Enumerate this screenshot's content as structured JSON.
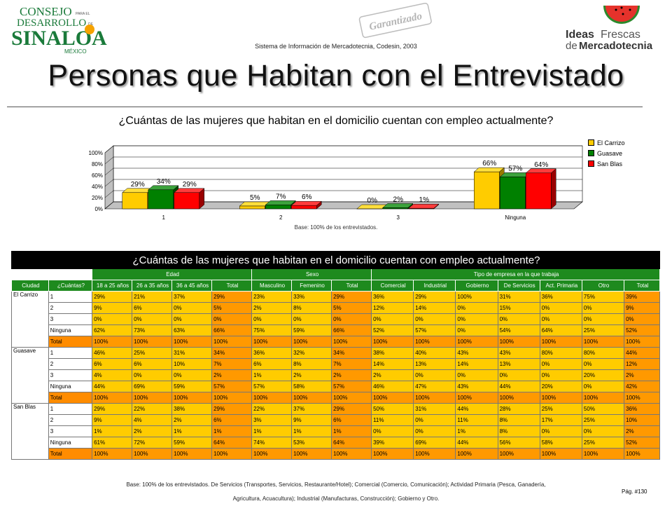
{
  "header": {
    "logo_left": {
      "line1": "CONSEJO",
      "line1b": "PARA EL",
      "line2": "DESARROLLO",
      "line2b": "DE",
      "line3": "SINALOA",
      "line4": "MÉXICO"
    },
    "subtitle": "Sistema de Información de Mercadotecnia, Codesin, 2003",
    "stamp_text": "Garantizado",
    "logo_right": {
      "line1a": "Ideas",
      "line1b": "Frescas",
      "line2a": "de",
      "line2b": "Mercadotecnia"
    }
  },
  "title": "Personas que Habitan con el Entrevistado",
  "chart_data": {
    "type": "bar",
    "title": "¿Cuántas de las mujeres que habitan en el domicilio cuentan con empleo actualmente?",
    "categories": [
      "1",
      "2",
      "3",
      "Ninguna"
    ],
    "series": [
      {
        "name": "El Carrizo",
        "values": [
          29,
          5,
          0,
          66
        ],
        "labels": [
          "29%",
          "5%",
          "0%",
          "66%"
        ],
        "color": "#ffcc00"
      },
      {
        "name": "Guasave",
        "values": [
          34,
          7,
          2,
          57
        ],
        "labels": [
          "34%",
          "7%",
          "2%",
          "57%"
        ],
        "color": "#008000"
      },
      {
        "name": "San Blas",
        "values": [
          29,
          6,
          1,
          64
        ],
        "labels": [
          "29%",
          "6%",
          "1%",
          "64%"
        ],
        "color": "#ff0000"
      }
    ],
    "ylim": [
      0,
      100
    ],
    "yticks": [
      "0%",
      "20%",
      "40%",
      "60%",
      "80%",
      "100%"
    ],
    "legend_position": "right",
    "note": "Base: 100% de los entrevistados."
  },
  "table": {
    "title": "¿Cuántas de las mujeres que habitan en el domicilio cuentan con empleo actualmente?",
    "groups": [
      "Edad",
      "Sexo",
      "Tipo de empresa en la que trabaja"
    ],
    "columns": [
      "Ciudad",
      "¿Cuántas?",
      "18 a 25 años",
      "26 a 35 años",
      "36 a 45 años",
      "Total",
      "Masculino",
      "Femenino",
      "Total",
      "Comercial",
      "Industrial",
      "Gobierno",
      "De Servicios",
      "Act. Primaria",
      "Otro",
      "Total"
    ],
    "cities": [
      {
        "name": "El Carrizo",
        "rows": [
          {
            "label": "1",
            "values": [
              "29%",
              "21%",
              "37%",
              "29%",
              "23%",
              "33%",
              "29%",
              "36%",
              "29%",
              "100%",
              "31%",
              "36%",
              "75%",
              "39%"
            ]
          },
          {
            "label": "2",
            "values": [
              "9%",
              "6%",
              "0%",
              "5%",
              "2%",
              "8%",
              "5%",
              "12%",
              "14%",
              "0%",
              "15%",
              "0%",
              "0%",
              "9%"
            ]
          },
          {
            "label": "3",
            "values": [
              "0%",
              "0%",
              "0%",
              "0%",
              "0%",
              "0%",
              "0%",
              "0%",
              "0%",
              "0%",
              "0%",
              "0%",
              "0%",
              "0%"
            ]
          },
          {
            "label": "Ninguna",
            "values": [
              "62%",
              "73%",
              "63%",
              "66%",
              "75%",
              "59%",
              "66%",
              "52%",
              "57%",
              "0%",
              "54%",
              "64%",
              "25%",
              "52%"
            ]
          },
          {
            "label": "Total",
            "values": [
              "100%",
              "100%",
              "100%",
              "100%",
              "100%",
              "100%",
              "100%",
              "100%",
              "100%",
              "100%",
              "100%",
              "100%",
              "100%",
              "100%"
            ]
          }
        ]
      },
      {
        "name": "Guasave",
        "rows": [
          {
            "label": "1",
            "values": [
              "46%",
              "25%",
              "31%",
              "34%",
              "36%",
              "32%",
              "34%",
              "38%",
              "40%",
              "43%",
              "43%",
              "80%",
              "80%",
              "44%"
            ]
          },
          {
            "label": "2",
            "values": [
              "6%",
              "6%",
              "10%",
              "7%",
              "6%",
              "8%",
              "7%",
              "14%",
              "13%",
              "14%",
              "13%",
              "0%",
              "0%",
              "12%"
            ]
          },
          {
            "label": "3",
            "values": [
              "4%",
              "0%",
              "0%",
              "2%",
              "1%",
              "2%",
              "2%",
              "2%",
              "0%",
              "0%",
              "0%",
              "0%",
              "20%",
              "2%"
            ]
          },
          {
            "label": "Ninguna",
            "values": [
              "44%",
              "69%",
              "59%",
              "57%",
              "57%",
              "58%",
              "57%",
              "46%",
              "47%",
              "43%",
              "44%",
              "20%",
              "0%",
              "42%"
            ]
          },
          {
            "label": "Total",
            "values": [
              "100%",
              "100%",
              "100%",
              "100%",
              "100%",
              "100%",
              "100%",
              "100%",
              "100%",
              "100%",
              "100%",
              "100%",
              "100%",
              "100%"
            ]
          }
        ]
      },
      {
        "name": "San Blas",
        "rows": [
          {
            "label": "1",
            "values": [
              "29%",
              "22%",
              "38%",
              "29%",
              "22%",
              "37%",
              "29%",
              "50%",
              "31%",
              "44%",
              "28%",
              "25%",
              "50%",
              "36%"
            ]
          },
          {
            "label": "2",
            "values": [
              "9%",
              "4%",
              "2%",
              "6%",
              "3%",
              "9%",
              "6%",
              "11%",
              "0%",
              "11%",
              "8%",
              "17%",
              "25%",
              "10%"
            ]
          },
          {
            "label": "3",
            "values": [
              "1%",
              "2%",
              "1%",
              "1%",
              "1%",
              "1%",
              "1%",
              "0%",
              "0%",
              "1%",
              "8%",
              "0%",
              "0%",
              "2%"
            ]
          },
          {
            "label": "Ninguna",
            "values": [
              "61%",
              "72%",
              "59%",
              "64%",
              "74%",
              "53%",
              "64%",
              "39%",
              "69%",
              "44%",
              "56%",
              "58%",
              "25%",
              "52%"
            ]
          },
          {
            "label": "Total",
            "values": [
              "100%",
              "100%",
              "100%",
              "100%",
              "100%",
              "100%",
              "100%",
              "100%",
              "100%",
              "100%",
              "100%",
              "100%",
              "100%",
              "100%"
            ]
          }
        ]
      }
    ]
  },
  "footnote": {
    "line1": "Base: 100% de los entrevistados. De Servicios (Transportes, Servicios, Restaurante/Hotel); Comercial (Comercio, Comunicación); Actividad Primaria (Pesca, Ganadería,",
    "line2": "Agricultura, Acuacultura); Industrial (Manufacturas, Construcción); Gobierno y Otro."
  },
  "page_number": "Pág. #130",
  "colors": {
    "yellow": "#ffcc00",
    "green": "#008000",
    "red": "#ff0000",
    "orange": "#ff9900",
    "header_green": "#1e8a1e"
  }
}
